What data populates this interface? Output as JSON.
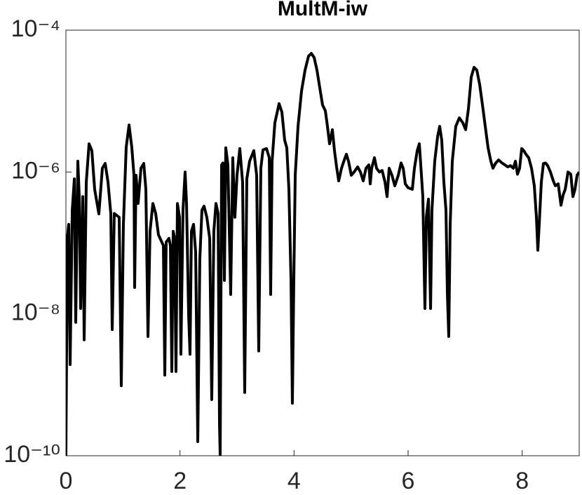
{
  "chart_data": {
    "type": "line",
    "title": "MultM-iw",
    "color": "#000000",
    "yscale": "log",
    "xlim": [
      0,
      9
    ],
    "ylim": [
      1e-10,
      0.0001
    ],
    "xticks": [
      0,
      2,
      4,
      6,
      8
    ],
    "yticks": [
      {
        "value": 1e-10,
        "label": "10⁻¹⁰"
      },
      {
        "value": 1e-08,
        "label": "10⁻⁸"
      },
      {
        "value": 1e-06,
        "label": "10⁻⁶"
      },
      {
        "value": 0.0001,
        "label": "10⁻⁴"
      }
    ],
    "x": [
      0,
      0.025,
      0.049,
      0.074,
      0.111,
      0.148,
      0.172,
      0.209,
      0.234,
      0.258,
      0.295,
      0.32,
      0.357,
      0.406,
      0.455,
      0.504,
      0.578,
      0.639,
      0.689,
      0.738,
      0.787,
      0.812,
      0.848,
      0.934,
      0.971,
      1.008,
      1.057,
      1.107,
      1.156,
      1.193,
      1.205,
      1.23,
      1.266,
      1.316,
      1.365,
      1.402,
      1.439,
      1.475,
      1.525,
      1.574,
      1.623,
      1.709,
      1.734,
      1.758,
      1.807,
      1.832,
      1.857,
      1.881,
      1.906,
      1.93,
      1.955,
      1.992,
      2.016,
      2.053,
      2.09,
      2.115,
      2.152,
      2.176,
      2.201,
      2.238,
      2.275,
      2.312,
      2.348,
      2.385,
      2.422,
      2.471,
      2.521,
      2.557,
      2.594,
      2.631,
      2.668,
      2.693,
      2.705,
      2.73,
      2.754,
      2.779,
      2.803,
      2.84,
      2.889,
      2.926,
      2.963,
      3.0,
      3.049,
      3.098,
      3.135,
      3.172,
      3.221,
      3.295,
      3.344,
      3.381,
      3.418,
      3.455,
      3.517,
      3.566,
      3.59,
      3.615,
      3.664,
      3.738,
      3.787,
      3.836,
      3.873,
      3.91,
      3.947,
      3.971,
      3.996,
      4.021,
      4.07,
      4.131,
      4.193,
      4.254,
      4.303,
      4.353,
      4.402,
      4.451,
      4.5,
      4.549,
      4.586,
      4.623,
      4.672,
      4.709,
      4.746,
      4.783,
      4.832,
      4.881,
      4.918,
      4.955,
      5.004,
      5.053,
      5.115,
      5.164,
      5.213,
      5.262,
      5.312,
      5.336,
      5.361,
      5.41,
      5.447,
      5.496,
      5.545,
      5.595,
      5.631,
      5.668,
      5.717,
      5.767,
      5.828,
      5.877,
      5.914,
      5.951,
      6.0,
      6.074,
      6.111,
      6.16,
      6.197,
      6.234,
      6.258,
      6.295,
      6.32,
      6.357,
      6.394,
      6.418,
      6.467,
      6.517,
      6.554,
      6.59,
      6.627,
      6.664,
      6.689,
      6.713,
      6.738,
      6.775,
      6.836,
      6.898,
      6.959,
      7.009,
      7.058,
      7.107,
      7.156,
      7.205,
      7.254,
      7.304,
      7.353,
      7.402,
      7.451,
      7.488,
      7.537,
      7.586,
      7.648,
      7.697,
      7.746,
      7.795,
      7.845,
      7.882,
      7.918,
      7.955,
      7.992,
      8.029,
      8.066,
      8.115,
      8.164,
      8.213,
      8.25,
      8.275,
      8.299,
      8.336,
      8.373,
      8.41,
      8.447,
      8.496,
      8.546,
      8.582,
      8.632,
      8.681,
      8.718,
      8.755,
      8.804,
      8.853,
      8.89,
      8.926,
      8.963,
      9.0
    ],
    "values": [
      1e-10,
      1.16e-07,
      1.83e-07,
      1.93e-09,
      2.88e-07,
      8e-07,
      7.6e-09,
      1.42e-06,
      4.5e-07,
      1.19e-08,
      4.5e-07,
      4.3e-09,
      7.2e-07,
      2.5e-06,
      2e-06,
      5.7e-07,
      2.57e-07,
      1.13e-06,
      1.32e-06,
      7.2e-07,
      2.6e-07,
      6e-09,
      2.6e-07,
      2.3e-07,
      9.7e-10,
      1.83e-07,
      2.23e-06,
      4.6e-06,
      2.2e-06,
      9e-07,
      2.36e-08,
      9e-07,
      3.6e-07,
      1.13e-06,
      1.32e-06,
      5.7e-07,
      4.8e-09,
      1.46e-07,
      3.6e-07,
      2.6e-07,
      1.3e-07,
      9.2e-08,
      1.37e-09,
      1.03e-07,
      1.16e-07,
      9.2e-08,
      1.54e-09,
      1.46e-07,
      1.16e-07,
      1.54e-09,
      3.6e-07,
      2.3e-07,
      2.7e-09,
      2.9e-07,
      1e-06,
      3.6e-07,
      9.5e-09,
      2.7e-09,
      1.46e-07,
      1.83e-07,
      7.4e-08,
      1.58e-10,
      5.9e-08,
      2.9e-07,
      3.3e-07,
      2.3e-07,
      1.16e-07,
      6.2e-10,
      1.46e-07,
      3.6e-07,
      2.6e-07,
      2.8e-10,
      1e-10,
      1.26e-06,
      1.34e-06,
      2.96e-08,
      2.2e-06,
      1.26e-06,
      1.88e-08,
      1.59e-06,
      2.3e-07,
      9e-07,
      2.14e-06,
      7.2e-07,
      7.8e-10,
      8e-07,
      1.42e-06,
      2e-06,
      9e-07,
      3e-09,
      1.13e-06,
      2.05e-06,
      2.14e-06,
      1.59e-06,
      1.88e-08,
      1.42e-06,
      4.95e-06,
      9.2e-06,
      7e-06,
      2.8e-06,
      2.2e-06,
      5.7e-07,
      2.96e-08,
      5.5e-10,
      2.96e-08,
      9e-07,
      4.4e-06,
      1.38e-05,
      2.73e-05,
      4.3e-05,
      4.7e-05,
      4.1e-05,
      2.73e-05,
      1.55e-05,
      8.8e-06,
      7.3e-06,
      4.4e-06,
      2.5e-06,
      3.95e-06,
      2e-06,
      1.18e-06,
      7.5e-07,
      1.13e-06,
      1.48e-06,
      1.78e-06,
      1.42e-06,
      9e-07,
      1e-06,
      1.18e-06,
      1e-06,
      7.5e-07,
      1.13e-06,
      1.26e-06,
      6.8e-07,
      1.13e-06,
      1.59e-06,
      1.13e-06,
      1e-06,
      1.05e-06,
      7.2e-07,
      4.5e-07,
      1.13e-06,
      9e-07,
      6.4e-07,
      9e-07,
      1.34e-06,
      1.13e-06,
      6.8e-07,
      6e-07,
      5.7e-07,
      1.13e-06,
      2e-06,
      2.5e-06,
      9e-07,
      4.5e-07,
      1.19e-08,
      2.3e-07,
      4.15e-07,
      1.19e-08,
      2.9e-07,
      1.42e-06,
      3.15e-06,
      4.4e-06,
      2.8e-06,
      7.2e-07,
      2.9e-07,
      1.88e-08,
      4.8e-09,
      1.83e-07,
      1.42e-06,
      4.4e-06,
      5.8e-06,
      4.95e-06,
      3.95e-06,
      7.8e-06,
      2.18e-05,
      2.99e-05,
      2.73e-05,
      1.73e-05,
      8.8e-06,
      4.4e-06,
      2.2e-06,
      1.42e-06,
      1.13e-06,
      1.34e-06,
      1.48e-06,
      1.34e-06,
      1.26e-06,
      1.18e-06,
      1.23e-06,
      1.13e-06,
      1.42e-06,
      9.3e-07,
      1.13e-06,
      2.14e-06,
      2e-06,
      1.78e-06,
      1.59e-06,
      1.13e-06,
      6.4e-07,
      2.3e-07,
      7.9e-08,
      1.83e-07,
      7.2e-07,
      1.32e-06,
      1.34e-06,
      1.23e-06,
      1e-06,
      7.5e-07,
      6.4e-07,
      6.8e-07,
      3.4e-07,
      4.75e-07,
      5.7e-07,
      1e-06,
      9.3e-07,
      4.5e-07,
      5.7e-07,
      9e-07,
      1e-06
    ]
  }
}
